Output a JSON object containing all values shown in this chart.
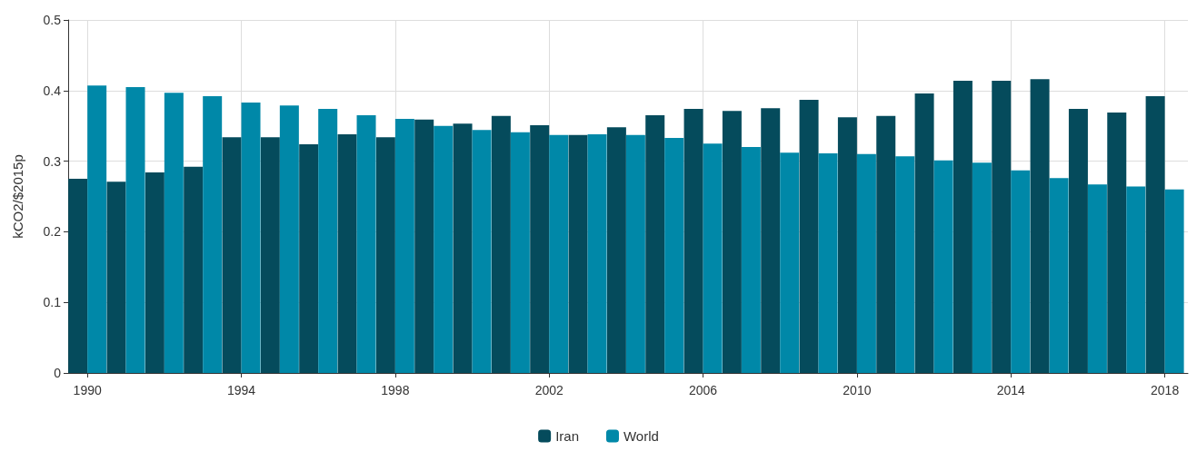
{
  "chart_data": {
    "type": "bar",
    "ylabel": "kCO2/$2015p",
    "x": [
      1990,
      1991,
      1992,
      1993,
      1994,
      1995,
      1996,
      1997,
      1998,
      1999,
      2000,
      2001,
      2002,
      2003,
      2004,
      2005,
      2006,
      2007,
      2008,
      2009,
      2010,
      2011,
      2012,
      2013,
      2014,
      2015,
      2016,
      2017,
      2018
    ],
    "series": [
      {
        "name": "Iran",
        "color": "#054b5c",
        "values": [
          0.275,
          0.271,
          0.284,
          0.292,
          0.334,
          0.334,
          0.324,
          0.338,
          0.334,
          0.359,
          0.353,
          0.364,
          0.351,
          0.337,
          0.348,
          0.365,
          0.374,
          0.371,
          0.375,
          0.387,
          0.362,
          0.364,
          0.396,
          0.414,
          0.414,
          0.416,
          0.374,
          0.369,
          0.392
        ]
      },
      {
        "name": "World",
        "color": "#0088a8",
        "values": [
          0.407,
          0.405,
          0.397,
          0.392,
          0.383,
          0.379,
          0.374,
          0.365,
          0.36,
          0.35,
          0.344,
          0.341,
          0.337,
          0.338,
          0.337,
          0.333,
          0.325,
          0.32,
          0.312,
          0.311,
          0.31,
          0.307,
          0.301,
          0.298,
          0.287,
          0.276,
          0.267,
          0.264,
          0.26
        ]
      }
    ],
    "xlim": [
      1989.5,
      2018.6
    ],
    "xticks": [
      1990,
      1994,
      1998,
      2002,
      2006,
      2010,
      2014,
      2018
    ],
    "ylim": [
      0,
      0.5
    ],
    "yticks": [
      0,
      0.1,
      0.2,
      0.3,
      0.4,
      0.5
    ],
    "grid": true,
    "legend": "bottom"
  }
}
